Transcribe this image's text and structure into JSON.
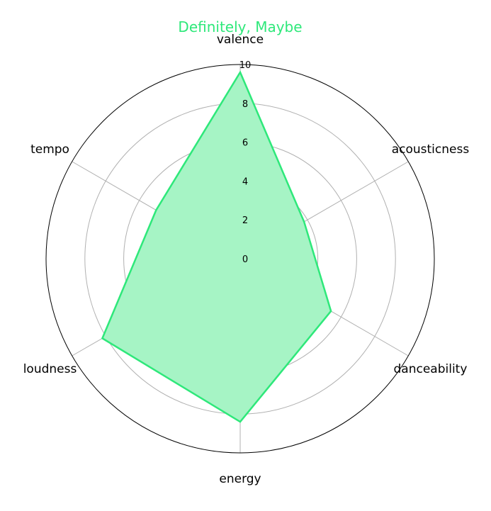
{
  "chart_data": {
    "type": "radar",
    "title": "Definitely, Maybe",
    "axes": [
      "valence",
      "acousticness",
      "danceability",
      "energy",
      "loudness",
      "tempo"
    ],
    "series": [
      {
        "values": [
          9.6,
          3.8,
          5.4,
          8.4,
          8.2,
          5.0
        ]
      }
    ],
    "rlim": [
      0,
      10
    ],
    "r_ticks": [
      "0",
      "2",
      "4",
      "6",
      "8",
      "10"
    ],
    "grid": true,
    "colors": {
      "series": "#2ee87a",
      "fill": "#a6f4c5",
      "grid": "#b0b0b0",
      "outer": "#000000"
    }
  }
}
